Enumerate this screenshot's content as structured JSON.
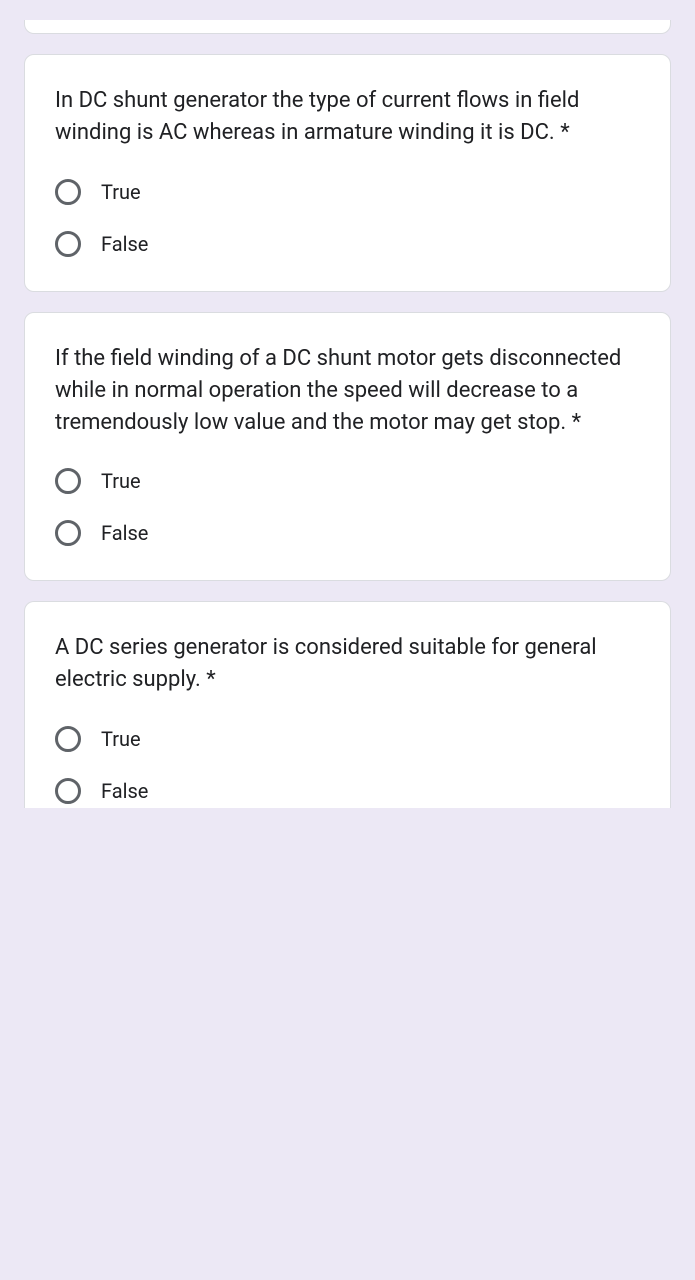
{
  "colors": {
    "page_bg": "#ece8f5",
    "card_bg": "#ffffff",
    "card_border": "#dadce0",
    "text": "#202124",
    "radio_border": "#5f6368"
  },
  "questions": [
    {
      "text": "In DC shunt generator the type of current flows in field winding is AC whereas in armature winding it is DC. ",
      "required_mark": "*",
      "options": [
        "True",
        "False"
      ]
    },
    {
      "text": "If the field winding of a DC shunt motor gets disconnected while in normal operation the speed will decrease to a tremendously low value and the motor may get stop. ",
      "required_mark": "*",
      "options": [
        "True",
        "False"
      ]
    },
    {
      "text": "A DC series generator is considered suitable for general electric supply. ",
      "required_mark": "*",
      "options": [
        "True",
        "False"
      ]
    }
  ]
}
